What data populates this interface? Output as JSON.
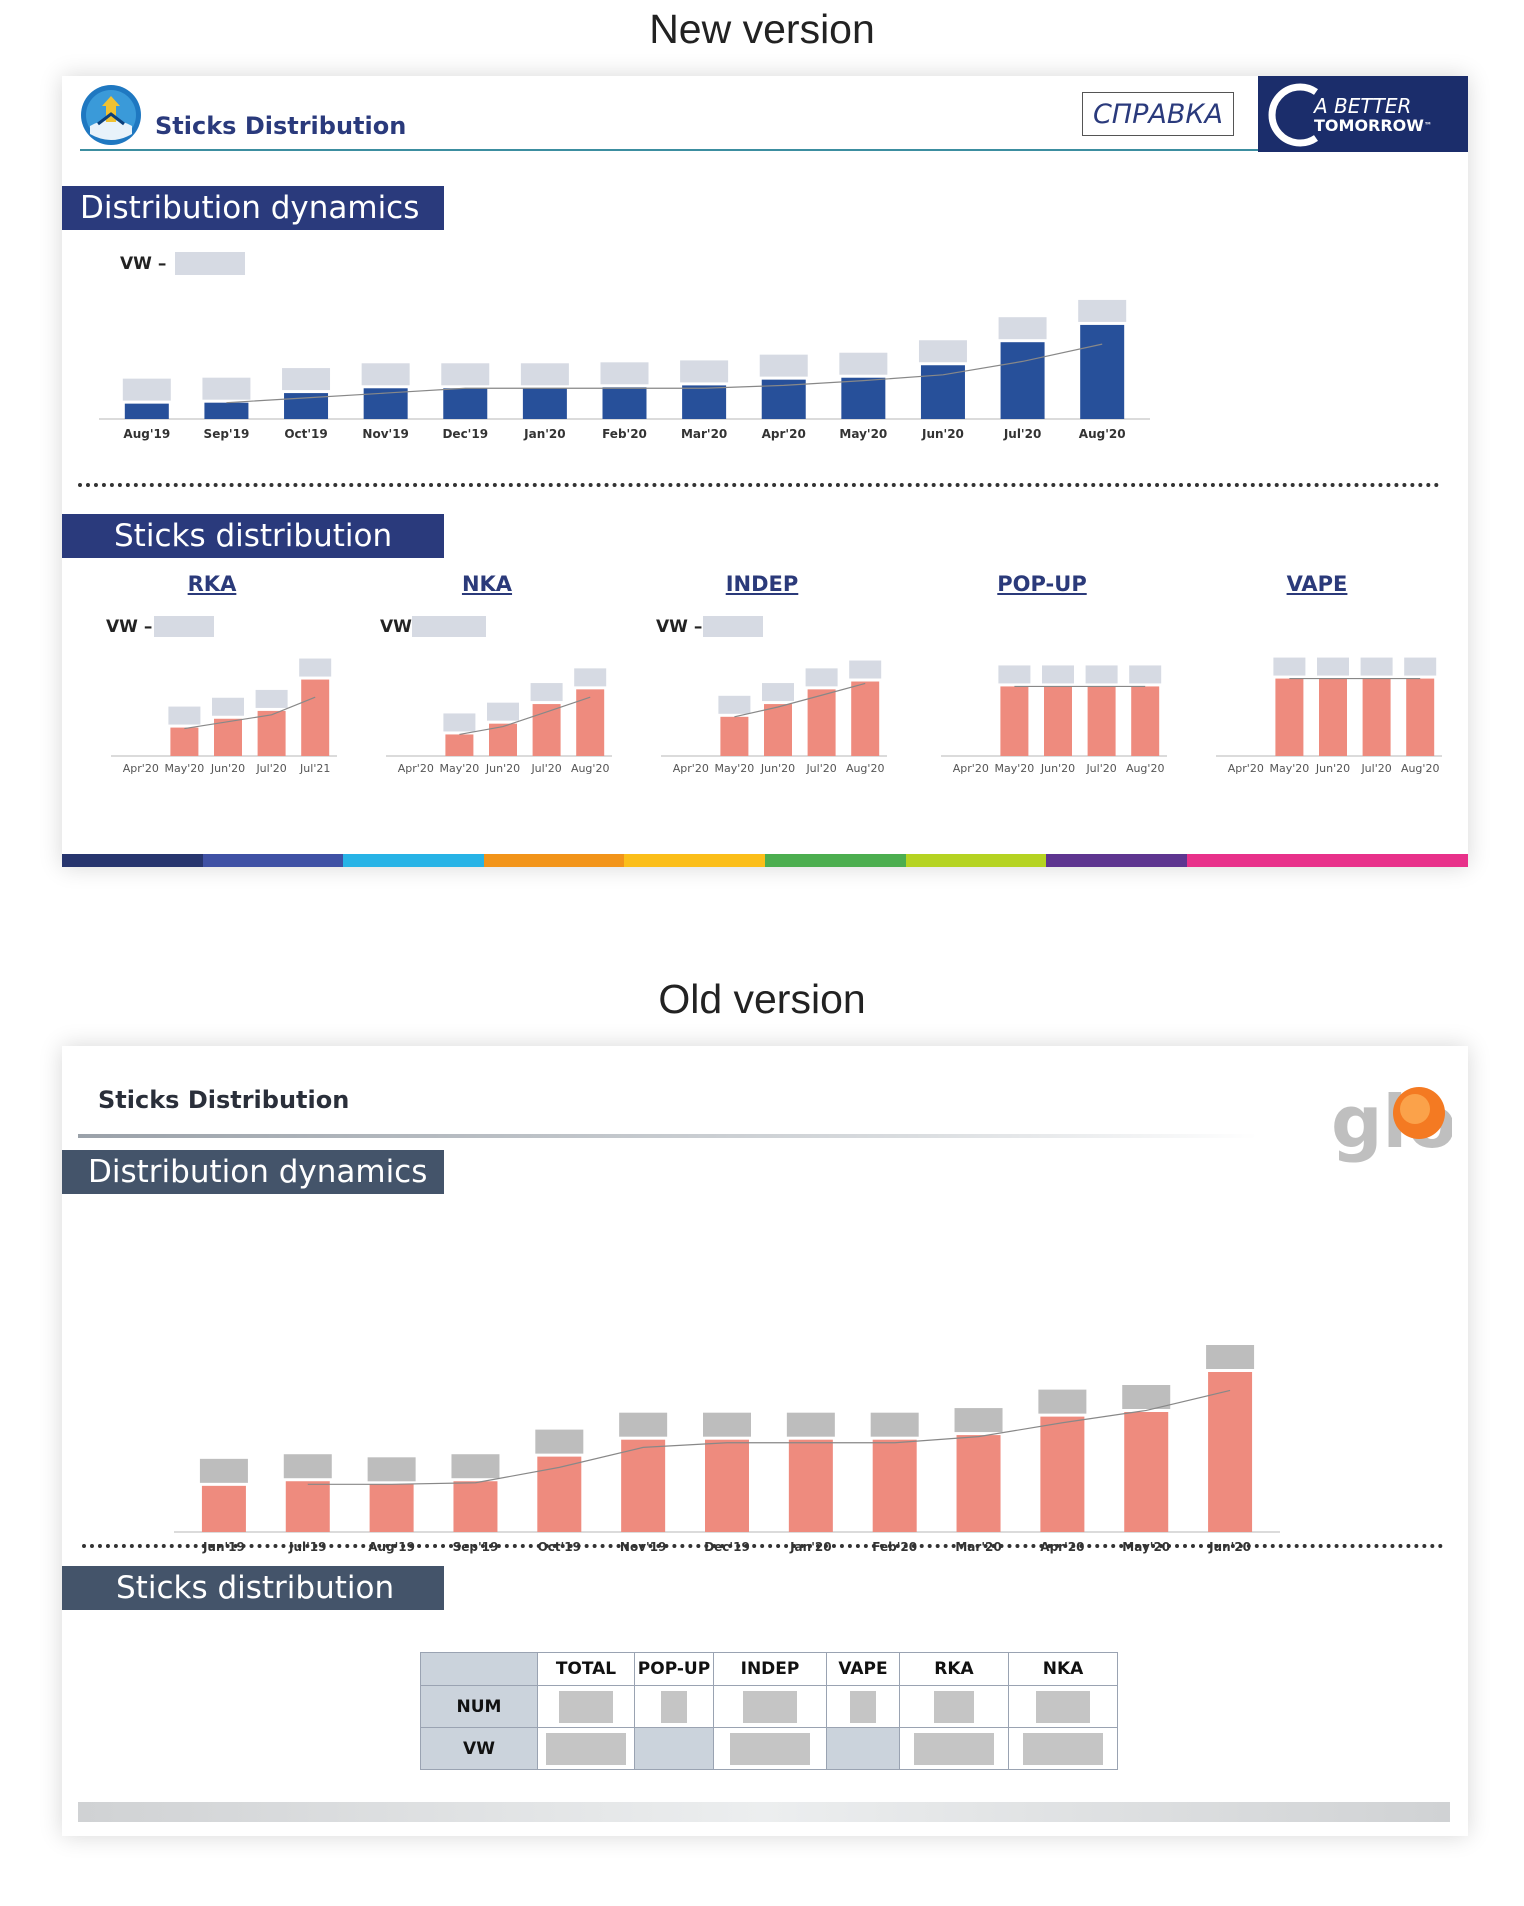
{
  "captions": {
    "new": "New version",
    "old": "Old version"
  },
  "new_version": {
    "header_title": "Sticks Distribution",
    "spravka": "СПРАВКА",
    "brand_line1": "A BETTER",
    "brand_line2": "TOMORROW",
    "brand_tm": "™",
    "section1": "Distribution dynamics",
    "vw_label": "VW –",
    "section2": "Sticks distribution",
    "colors": {
      "navy": "#2a3a7c",
      "bar_blue": "#27509a",
      "bar_pink": "#ee8b7e",
      "placeholder": "#d6dae3"
    }
  },
  "old_version": {
    "header_title": "Sticks Distribution",
    "logo_text": "glo",
    "section1": "Distribution dynamics",
    "section2": "Sticks distribution",
    "colors": {
      "banner": "#44546a",
      "bar_pink": "#ee8b7e",
      "placeholder": "#bdbdbd"
    },
    "table": {
      "headers": [
        "",
        "TOTAL",
        "POP-UP",
        "INDEP",
        "VAPE",
        "RKA",
        "NKA"
      ],
      "rows": [
        {
          "label": "NUM"
        },
        {
          "label": "VW"
        }
      ]
    }
  },
  "chart_data": [
    {
      "id": "new-main",
      "type": "bar",
      "title": "Distribution dynamics",
      "categories": [
        "Aug'19",
        "Sep'19",
        "Oct'19",
        "Nov'19",
        "Dec'19",
        "Jan'20",
        "Feb'20",
        "Mar'20",
        "Apr'20",
        "May'20",
        "Jun'20",
        "Jul'20",
        "Aug'20"
      ],
      "values": [
        16,
        17,
        27,
        32,
        32,
        32,
        33,
        35,
        41,
        43,
        56,
        80,
        98
      ],
      "trend": [
        null,
        17,
        22,
        27,
        32,
        32,
        32,
        32,
        35,
        40,
        46,
        60,
        78
      ],
      "ylim": [
        0,
        125
      ],
      "bar_color": "#27509a",
      "grid": false,
      "legend": "none"
    },
    {
      "id": "rka",
      "type": "bar",
      "title": "RKA",
      "categories": [
        "Apr'20",
        "May'20",
        "Jun'20",
        "Jul'20",
        "Jul'21"
      ],
      "values": [
        0,
        29,
        38,
        46,
        78
      ],
      "trend": [
        null,
        28,
        35,
        42,
        60
      ],
      "ylim": [
        0,
        100
      ],
      "bar_color": "#ee8b7e"
    },
    {
      "id": "nka",
      "type": "bar",
      "title": "NKA",
      "categories": [
        "Apr'20",
        "May'20",
        "Jun'20",
        "Jul'20",
        "Aug'20"
      ],
      "values": [
        0,
        22,
        33,
        53,
        68
      ],
      "trend": [
        null,
        22,
        30,
        45,
        60
      ],
      "ylim": [
        0,
        100
      ],
      "bar_color": "#ee8b7e"
    },
    {
      "id": "indep",
      "type": "bar",
      "title": "INDEP",
      "categories": [
        "Apr'20",
        "May'20",
        "Jun'20",
        "Jul'20",
        "Aug'20"
      ],
      "values": [
        0,
        40,
        53,
        68,
        76
      ],
      "trend": [
        null,
        40,
        50,
        62,
        74
      ],
      "ylim": [
        0,
        100
      ],
      "bar_color": "#ee8b7e"
    },
    {
      "id": "popup",
      "type": "bar",
      "title": "POP-UP",
      "categories": [
        "Apr'20",
        "May'20",
        "Jun'20",
        "Jul'20",
        "Aug'20"
      ],
      "values": [
        0,
        71,
        71,
        71,
        71
      ],
      "trend": [
        null,
        71,
        71,
        71,
        71
      ],
      "ylim": [
        0,
        100
      ],
      "bar_color": "#ee8b7e"
    },
    {
      "id": "vape",
      "type": "bar",
      "title": "VAPE",
      "categories": [
        "Apr'20",
        "May'20",
        "Jun'20",
        "Jul'20",
        "Aug'20"
      ],
      "values": [
        0,
        79,
        79,
        79,
        79
      ],
      "trend": [
        null,
        79,
        79,
        79,
        79
      ],
      "ylim": [
        0,
        100
      ],
      "bar_color": "#ee8b7e"
    },
    {
      "id": "old-main",
      "type": "bar",
      "title": "Distribution dynamics",
      "categories": [
        "Jun'19",
        "Jul'19",
        "Aug'19",
        "Sep'19",
        "Oct'19",
        "Nov'19",
        "Dec'19",
        "Jan'20",
        "Feb'20",
        "Mar'20",
        "Apr'20",
        "May'20",
        "Jun'20"
      ],
      "values": [
        30,
        33,
        31,
        33,
        49,
        60,
        60,
        60,
        60,
        63,
        75,
        78,
        104
      ],
      "trend": [
        null,
        31,
        31,
        32,
        42,
        55,
        58,
        58,
        58,
        62,
        71,
        79,
        92
      ],
      "ylim": [
        0,
        130
      ],
      "bar_color": "#ee8b7e",
      "grid": false,
      "legend": "none"
    }
  ]
}
